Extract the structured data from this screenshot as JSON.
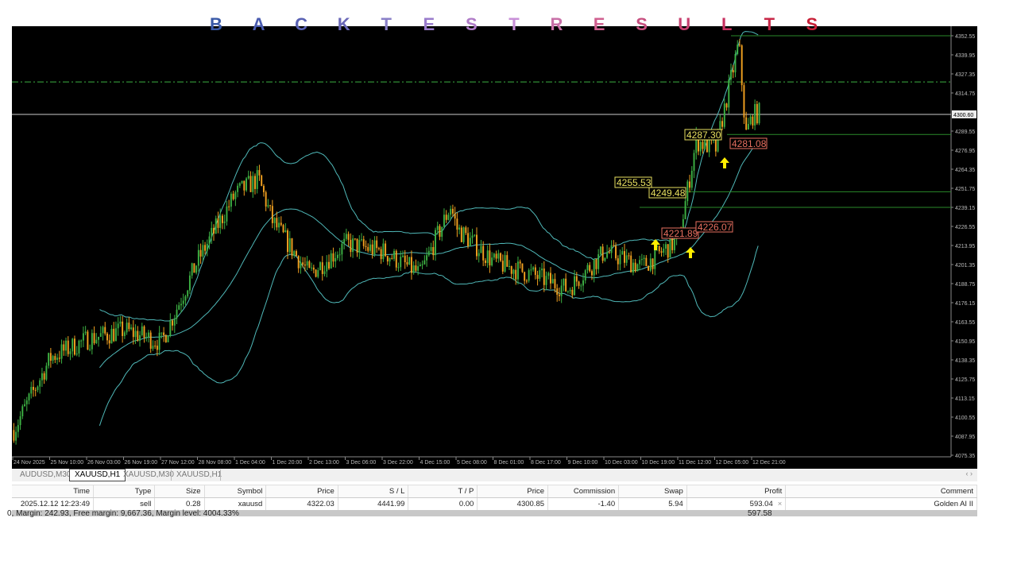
{
  "title_letters": [
    "B",
    "A",
    "C",
    "K",
    "T",
    "E",
    "S",
    "T",
    "R",
    "E",
    "S",
    "U",
    "L",
    "T",
    "S"
  ],
  "title_colors": [
    "#3a5aa8",
    "#4a5cb0",
    "#5a62b4",
    "#6a68b8",
    "#8a80c8",
    "#9a7ccc",
    "#b07cc8",
    "#c890d8",
    "#c870a8",
    "#d06090",
    "#c85080",
    "#c84070",
    "#c83060",
    "#c82848",
    "#c82038"
  ],
  "price_axis": [
    "4352.55",
    "4339.95",
    "4327.35",
    "4314.75",
    "4289.55",
    "4276.95",
    "4264.35",
    "4251.75",
    "4239.15",
    "4226.55",
    "4213.95",
    "4201.35",
    "4188.75",
    "4176.15",
    "4163.55",
    "4150.95",
    "4138.35",
    "4125.75",
    "4113.15",
    "4100.55",
    "4087.95",
    "4075.35"
  ],
  "current_price": "4300.60",
  "time_axis": [
    "24 Nov 2025",
    "25 Nov 10:00",
    "26 Nov 03:00",
    "26 Nov 19:00",
    "27 Nov 12:00",
    "28 Nov 08:00",
    "1 Dec 04:00",
    "1 Dec 20:00",
    "2 Dec 13:00",
    "3 Dec 06:00",
    "3 Dec 22:00",
    "4 Dec 15:00",
    "5 Dec 08:00",
    "8 Dec 01:00",
    "8 Dec 17:00",
    "9 Dec 10:00",
    "10 Dec 03:00",
    "10 Dec 19:00",
    "11 Dec 12:00",
    "12 Dec 05:00",
    "12 Dec 21:00"
  ],
  "chart_data": {
    "type": "candlestick",
    "symbol": "XAUUSD",
    "timeframe": "H1",
    "ylim": [
      4075.35,
      4352.55
    ],
    "approx_close_at_time_labels": [
      4092,
      4140,
      4152,
      4158,
      4150,
      4205,
      4248,
      4230,
      4195,
      4215,
      4210,
      4195,
      4225,
      4203,
      4195,
      4185,
      4210,
      4200,
      4218,
      4278,
      4300
    ],
    "extra_points": [
      [
        "1 Dec 14:00",
        4258
      ],
      [
        "5 Dec 05:00",
        4240
      ],
      [
        "11 Dec 20:00",
        4283
      ],
      [
        "12 Dec 15:00",
        4348
      ],
      [
        "12 Dec 18:00",
        4287
      ]
    ],
    "indicators": [
      "Bollinger Bands",
      "Moving Average"
    ],
    "horizontal_lines": {
      "entry": 4322.03,
      "current": 4300.6,
      "levels": [
        4352.55,
        4287.3,
        4249.48,
        4239.15
      ]
    },
    "trade_labels": [
      {
        "text": "4287.30",
        "color": "#e8e060"
      },
      {
        "text": "4281.08",
        "color": "#e87060"
      },
      {
        "text": "4255.53",
        "color": "#e8e060"
      },
      {
        "text": "4249.48",
        "color": "#e8e060"
      },
      {
        "text": "4221.89",
        "color": "#e87060"
      },
      {
        "text": "4226.07",
        "color": "#e87060"
      }
    ],
    "up_color": "#3cb043",
    "down_color": "#f0a020",
    "band_color": "#4fb8b8"
  },
  "tabs": [
    {
      "label": "AUDUSD,M30"
    },
    {
      "label": "XAUUSD,H1",
      "active": true
    },
    {
      "label": "XAUUSD,M30"
    },
    {
      "label": "XAUUSD,H1"
    }
  ],
  "tab_scroll": "‹ ›",
  "table": {
    "headers": [
      "Time",
      "Type",
      "Size",
      "Symbol",
      "Price",
      "S / L",
      "T / P",
      "Price",
      "Commission",
      "Swap",
      "Profit",
      "Comment"
    ],
    "row": [
      "2025.12.12 12:23:49",
      "sell",
      "0.28",
      "xauusd",
      "4322.03",
      "4441.99",
      "0.00",
      "4300.85",
      "-1.40",
      "5.94",
      "593.04",
      "Golden AI II"
    ],
    "close_glyph": "×"
  },
  "status": {
    "text": "0, Margin: 242.93, Free margin: 9,667.36, Margin level: 4004.33%",
    "total": "597.58"
  }
}
